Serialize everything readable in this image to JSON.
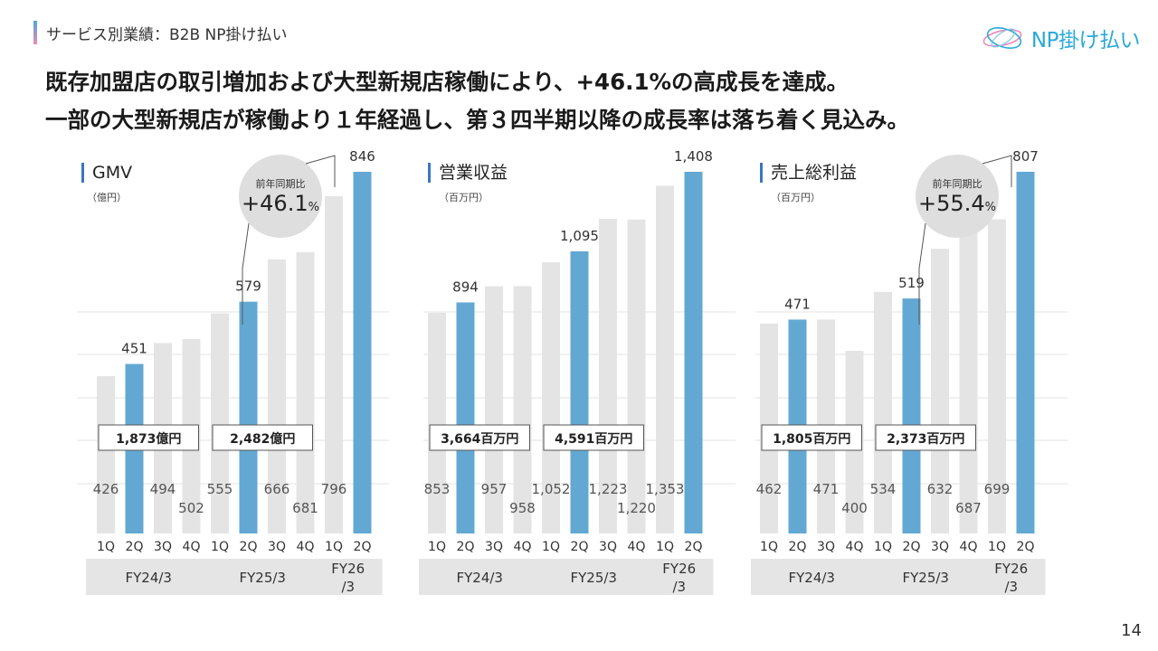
{
  "header": {
    "section": "サービス別業績：B2B NP掛け払い",
    "logo_text": "NP掛け払い"
  },
  "headline": {
    "line1": "既存加盟店の取引増加および大型新規店稼働により、+46.1%の高成長を達成。",
    "line2": "一部の大型新規店が稼働より１年経過し、第３四半期以降の成長率は落ち着く見込み。"
  },
  "page_number": "14",
  "colors": {
    "highlight": "#62a8d3",
    "base": "#e4e4e4",
    "grid": "#e3e3e3",
    "bubble": "#dedede",
    "title_accent": "#3a76c2"
  },
  "chart_data": [
    {
      "type": "bar",
      "title": "GMV",
      "unit": "（億円）",
      "categories": [
        "1Q",
        "2Q",
        "3Q",
        "4Q",
        "1Q",
        "2Q",
        "3Q",
        "4Q",
        "1Q",
        "2Q"
      ],
      "values": [
        426,
        451,
        494,
        502,
        555,
        579,
        666,
        681,
        796,
        846
      ],
      "highlight_indices": [
        1,
        5,
        9
      ],
      "top_labels": [
        {
          "index": 1,
          "text": "451"
        },
        {
          "index": 5,
          "text": "579"
        },
        {
          "index": 9,
          "text": "846"
        }
      ],
      "inner_labels": [
        "426",
        "",
        "494",
        "502",
        "555",
        "",
        "666",
        "681",
        "796",
        ""
      ],
      "fiscal_years": [
        {
          "label": "FY24/3",
          "from": 0,
          "to": 3
        },
        {
          "label": "FY25/3",
          "from": 4,
          "to": 7
        },
        {
          "label": "FY26\n/3",
          "from": 8,
          "to": 9
        }
      ],
      "totals": [
        {
          "text": "1,873億円",
          "from": 0,
          "to": 3
        },
        {
          "text": "2,482億円",
          "from": 4,
          "to": 7
        }
      ],
      "bubble": {
        "title": "前年同期比",
        "value": "+46.1",
        "unit": "%"
      }
    },
    {
      "type": "bar",
      "title": "営業収益",
      "unit": "（百万円）",
      "categories": [
        "1Q",
        "2Q",
        "3Q",
        "4Q",
        "1Q",
        "2Q",
        "3Q",
        "4Q",
        "1Q",
        "2Q"
      ],
      "values": [
        853,
        894,
        957,
        958,
        1052,
        1095,
        1223,
        1220,
        1353,
        1408
      ],
      "highlight_indices": [
        1,
        5,
        9
      ],
      "top_labels": [
        {
          "index": 1,
          "text": "894"
        },
        {
          "index": 5,
          "text": "1,095"
        },
        {
          "index": 9,
          "text": "1,408"
        }
      ],
      "inner_labels": [
        "853",
        "",
        "957",
        "958",
        "1,052",
        "",
        "1,223",
        "1,220",
        "1,353",
        ""
      ],
      "fiscal_years": [
        {
          "label": "FY24/3",
          "from": 0,
          "to": 3
        },
        {
          "label": "FY25/3",
          "from": 4,
          "to": 7
        },
        {
          "label": "FY26\n/3",
          "from": 8,
          "to": 9
        }
      ],
      "totals": [
        {
          "text": "3,664百万円",
          "from": 0,
          "to": 3
        },
        {
          "text": "4,591百万円",
          "from": 4,
          "to": 7
        }
      ]
    },
    {
      "type": "bar",
      "title": "売上総利益",
      "unit": "（百万円）",
      "categories": [
        "1Q",
        "2Q",
        "3Q",
        "4Q",
        "1Q",
        "2Q",
        "3Q",
        "4Q",
        "1Q",
        "2Q"
      ],
      "values": [
        462,
        471,
        471,
        400,
        534,
        519,
        632,
        687,
        699,
        807
      ],
      "highlight_indices": [
        1,
        5,
        9
      ],
      "top_labels": [
        {
          "index": 1,
          "text": "471"
        },
        {
          "index": 5,
          "text": "519"
        },
        {
          "index": 9,
          "text": "807"
        }
      ],
      "inner_labels": [
        "462",
        "",
        "471",
        "400",
        "534",
        "",
        "632",
        "687",
        "699",
        ""
      ],
      "fiscal_years": [
        {
          "label": "FY24/3",
          "from": 0,
          "to": 3
        },
        {
          "label": "FY25/3",
          "from": 4,
          "to": 7
        },
        {
          "label": "FY26\n/3",
          "from": 8,
          "to": 9
        }
      ],
      "totals": [
        {
          "text": "1,805百万円",
          "from": 0,
          "to": 3
        },
        {
          "text": "2,373百万円",
          "from": 4,
          "to": 7
        }
      ],
      "bubble": {
        "title": "前年同期比",
        "value": "+55.4",
        "unit": "%"
      }
    }
  ]
}
